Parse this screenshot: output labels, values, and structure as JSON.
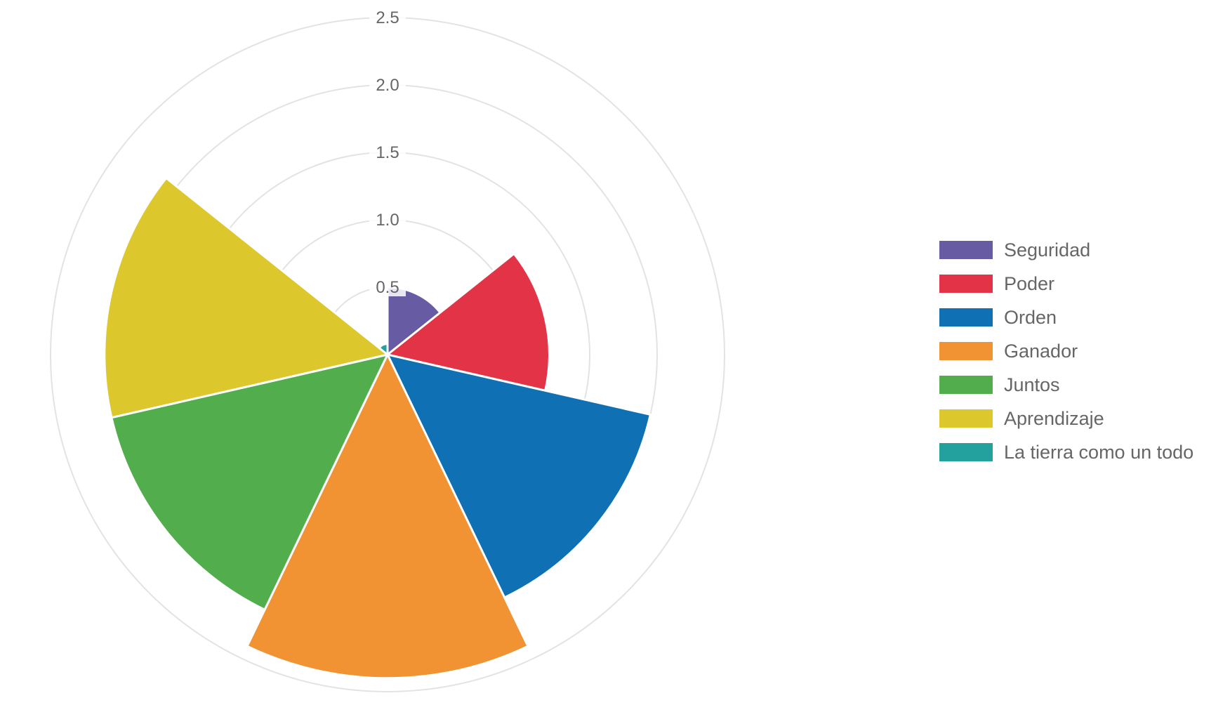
{
  "chart_data": {
    "type": "polarArea",
    "title": "",
    "categories": [
      "Seguridad",
      "Poder",
      "Orden",
      "Ganador",
      "Juntos",
      "Aprendizaje",
      "La tierra como un todo"
    ],
    "values": [
      0.5,
      1.2,
      2.0,
      2.4,
      2.1,
      2.1,
      0.08
    ],
    "colors": [
      "#675ca3",
      "#e33346",
      "#0f70b3",
      "#f19233",
      "#52ae4d",
      "#dcc82c",
      "#23a19e"
    ],
    "rlim": [
      0,
      2.5
    ],
    "r_ticks": [
      "0.5",
      "1.0",
      "1.5",
      "2.0",
      "2.5"
    ],
    "start_angle_deg": 0,
    "grid": true,
    "legend_position": "right"
  }
}
